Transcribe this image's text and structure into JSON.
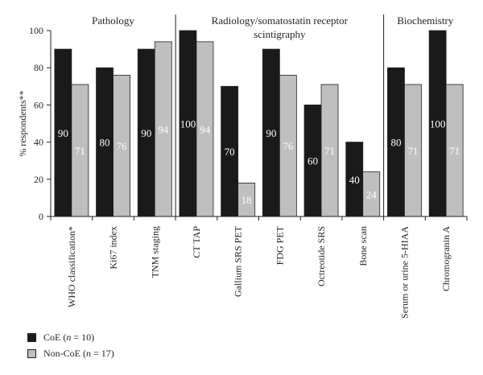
{
  "chart_data": {
    "type": "bar",
    "ylabel": "% respondents**",
    "ylim": [
      0,
      100
    ],
    "yticks": [
      0,
      20,
      40,
      60,
      80,
      100
    ],
    "grid": false,
    "groups": [
      {
        "label": "Pathology",
        "count": 3
      },
      {
        "label": "Radiology/somatostatin receptor",
        "label2": "scintigraphy",
        "count": 5
      },
      {
        "label": "Biochemistry",
        "count": 2
      }
    ],
    "categories": [
      "WHO classification*",
      "Ki67 index",
      "TNM staging",
      "CT TAP",
      "Gallium SRS PET",
      "FDG PET",
      "Octreotide SRS",
      "Bone scan",
      "Serum or urine 5-HIAA",
      "Chromogranin A"
    ],
    "series": [
      {
        "name": "CoE",
        "n": "10",
        "color": "#1a1a1a",
        "label_color": "#ffffff",
        "values": [
          90,
          80,
          90,
          100,
          70,
          90,
          60,
          40,
          80,
          100
        ]
      },
      {
        "name": "Non-CoE",
        "n": "17",
        "color": "#bfbfbf",
        "label_color": "#ffffff",
        "values": [
          71,
          76,
          94,
          94,
          18,
          76,
          71,
          24,
          71,
          71
        ]
      }
    ],
    "legend": "bottom-left"
  }
}
